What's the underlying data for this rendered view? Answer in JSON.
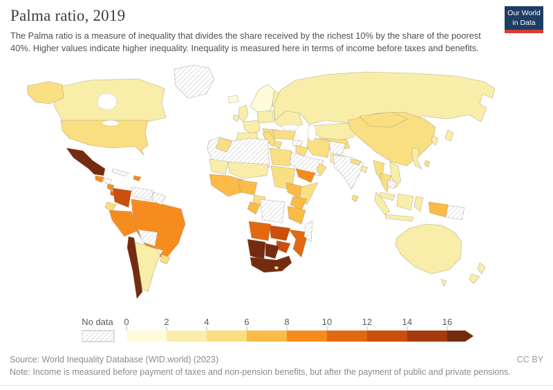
{
  "header": {
    "title": "Palma ratio, 2019",
    "subtitle": "The Palma ratio is a measure of inequality that divides the share received by the richest 10% by the share of the poorest 40%. Higher values indicate higher inequality. Inequality is measured here in terms of income before taxes and benefits.",
    "logo": {
      "line1": "Our World",
      "line2": "in Data",
      "bg": "#1d3d63",
      "accent": "#d93a34"
    }
  },
  "footer": {
    "source": "Source: World Inequality Database (WID.world) (2023)",
    "note": "Note: Income is measured before payment of taxes and non-pension benefits, but after the payment of public and private pensions.",
    "license": "CC BY"
  },
  "chart_data": {
    "type": "choropleth-map",
    "title": "Palma ratio, 2019",
    "year": "2019",
    "scale": {
      "tick_labels": [
        "0",
        "2",
        "4",
        "6",
        "8",
        "10",
        "12",
        "14",
        "16"
      ],
      "bin_labels": [
        "0-2",
        "2-4",
        "4-6",
        "6-8",
        "8-10",
        "10-12",
        "12-14",
        "14-16",
        "16+"
      ],
      "colors": [
        "#fdfbd8",
        "#f9eea9",
        "#f9df81",
        "#fbbb47",
        "#f78c1e",
        "#e2690f",
        "#cb4e0c",
        "#a53a10",
        "#752b10"
      ],
      "open_ended_top": true,
      "no_data_label": "No data"
    },
    "countries": {
      "greenland": "no_data",
      "alaska": 2,
      "canada": 1,
      "usa": 2,
      "mexico": 8,
      "guatemala": 4,
      "honduras": "no_data",
      "nicaragua": 4,
      "costa_rica_panama": 5,
      "cuba": "no_data",
      "dominican_republic": 4,
      "colombia": 6,
      "venezuela": "no_data",
      "guianas": "no_data",
      "ecuador": 2,
      "peru": 4,
      "brazil": 4,
      "bolivia": "no_data",
      "paraguay": "no_data",
      "chile": 8,
      "argentina": 1,
      "uruguay": 2,
      "iceland": 0,
      "norway_sweden": 0,
      "finland": 1,
      "united_kingdom": 1,
      "ireland": 1,
      "france": 1,
      "iberia": 1,
      "central_europe": 1,
      "italy": 2,
      "eastern_europe": 1,
      "balkans": 2,
      "greece": 2,
      "russia": 1,
      "kazakhstan": 1,
      "central_asia": 2,
      "turkey": 2,
      "syria": "no_data",
      "iraq": 2,
      "iran": 2,
      "saudi_arabia": "no_data",
      "yemen": 4,
      "oman": 2,
      "afghanistan": "no_data",
      "pakistan": 1,
      "india": "no_data",
      "nepal": 2,
      "bangladesh": 1,
      "china": 2,
      "mongolia": 2,
      "myanmar": 2,
      "thailand": 2,
      "vietnam": 1,
      "cambodia_laos": "no_data",
      "sri_lanka": 2,
      "malaysia": 1,
      "sumatra": 1,
      "java": 1,
      "borneo": 1,
      "sulawesi": 1,
      "philippines": 1,
      "japan": 1,
      "south_korea": 1,
      "taiwan": 2,
      "morocco": 2,
      "north_africa": "no_data",
      "mauritania": 1,
      "mali_niger_chad": 1,
      "egypt": 2,
      "sudan": 2,
      "ethiopia": 3,
      "somalia": 2,
      "west_africa": 3,
      "nigeria": 3,
      "cameroon": 2,
      "gabon_congo": 3,
      "dr_congo": "no_data",
      "uganda_kenya": 3,
      "tanzania": 3,
      "angola": 5,
      "zambia": 6,
      "mozambique": 5,
      "zimbabwe": 6,
      "namibia": 8,
      "botswana": 8,
      "south_africa": 8,
      "lesotho": 1,
      "madagascar": "no_data",
      "west_papua": 3,
      "papua_new_guinea": "no_data",
      "australia": 1,
      "tasmania": 1,
      "new_zealand_north": 1,
      "new_zealand_south": 1
    }
  }
}
